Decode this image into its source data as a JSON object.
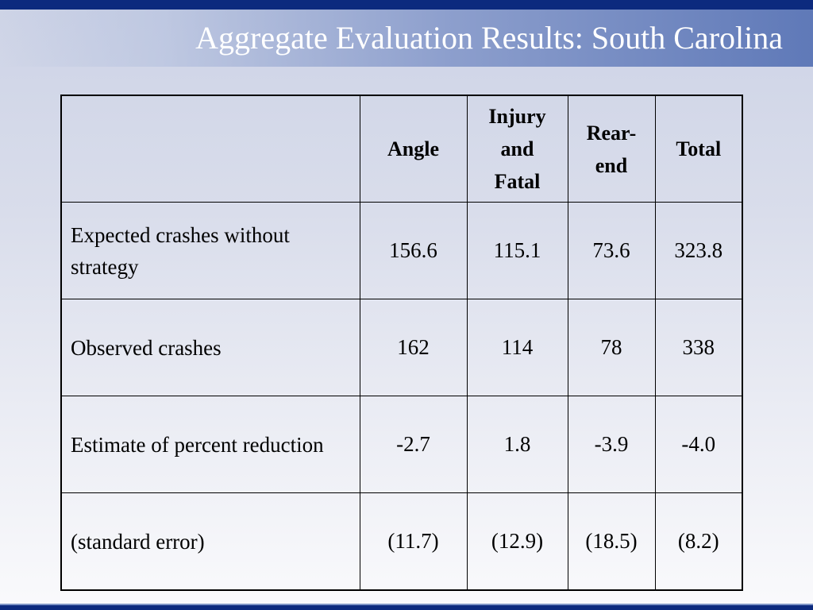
{
  "slide": {
    "title": "Aggregate Evaluation Results: South Carolina"
  },
  "table": {
    "headers": [
      "",
      "Angle",
      "Injury and Fatal",
      "Rear-end",
      "Total"
    ],
    "rows": [
      {
        "label": "Expected crashes without strategy",
        "values": [
          "156.6",
          "115.1",
          "73.6",
          "323.8"
        ]
      },
      {
        "label": "Observed crashes",
        "values": [
          "162",
          "114",
          "78",
          "338"
        ]
      },
      {
        "label": "Estimate of percent reduction",
        "values": [
          "-2.7",
          "1.8",
          "-3.9",
          "-4.0"
        ]
      },
      {
        "label": "(standard error)",
        "values": [
          "(11.7)",
          "(12.9)",
          "(18.5)",
          "(8.2)"
        ]
      }
    ]
  }
}
